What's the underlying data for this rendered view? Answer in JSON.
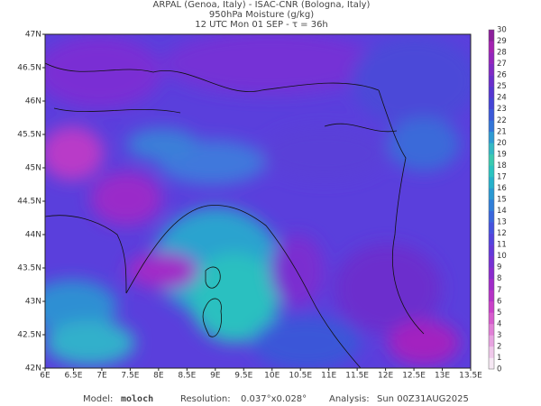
{
  "header": {
    "line1": "ARPAL (Genoa, Italy)  -  ISAC-CNR (Bologna, Italy)",
    "line2": "950hPa Moisture (g/kg)",
    "line3": "12 UTC Mon 01 SEP  -  τ = 36h"
  },
  "map": {
    "lat_labels": [
      "47N",
      "46.5N",
      "46N",
      "45.5N",
      "45N",
      "44.5N",
      "44N",
      "43.5N",
      "43N",
      "42.5N",
      "42N"
    ],
    "lon_labels": [
      "6E",
      "6.5E",
      "7E",
      "7.5E",
      "8E",
      "8.5E",
      "9E",
      "9.5E",
      "10E",
      "10.5E",
      "11E",
      "11.5E",
      "12E",
      "12.5E",
      "13E",
      "13.5E"
    ]
  },
  "colorbar": {
    "labels": [
      0,
      1,
      2,
      3,
      4,
      5,
      6,
      7,
      8,
      9,
      10,
      11,
      12,
      13,
      14,
      15,
      16,
      17,
      18,
      19,
      20,
      21,
      22,
      23,
      24,
      25,
      26,
      27,
      28,
      29,
      30
    ],
    "colors": [
      "#f6e8f4",
      "#efc8ea",
      "#e7a3e0",
      "#e07fd6",
      "#d65ccd",
      "#c941c8",
      "#b533c6",
      "#a02cc8",
      "#8a2ccd",
      "#7631d3",
      "#6438d9",
      "#5343dd",
      "#4552de",
      "#3a66dc",
      "#317ed8",
      "#2a98d2",
      "#27b1cb",
      "#2bc3c0",
      "#3bc9b0",
      "#34b8c4",
      "#2f9ad3",
      "#3476d8",
      "#3b58d8",
      "#4443d5",
      "#5536d0",
      "#6a2ecb",
      "#802ac4",
      "#9325bc",
      "#a322b1",
      "#8c1f9b"
    ]
  },
  "footer": {
    "model_label": "Model:",
    "model": "moloch",
    "resolution_label": "Resolution:",
    "resolution": "0.037°x0.028°",
    "analysis_label": "Analysis:",
    "analysis": "Sun 00Z31AUG2025"
  }
}
